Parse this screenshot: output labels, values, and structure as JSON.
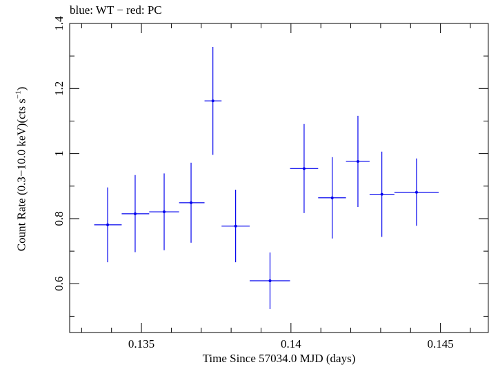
{
  "chart_data": {
    "type": "scatter",
    "title": "blue: WT − red: PC",
    "xlabel": "Time Since 57034.0 MJD (days)",
    "ylabel": "Count Rate (0.3−10.0 keV)(cts s",
    "ylabel_exponent": "−1",
    "ylabel_suffix": ")",
    "xlim": [
      0.1326,
      0.1466
    ],
    "ylim": [
      0.45,
      1.4
    ],
    "x_ticks": [
      {
        "value": 0.135,
        "label": "0.135"
      },
      {
        "value": 0.14,
        "label": "0.14"
      },
      {
        "value": 0.145,
        "label": "0.145"
      }
    ],
    "x_minor_step": 0.001,
    "y_ticks": [
      {
        "value": 0.6,
        "label": "0.6"
      },
      {
        "value": 0.8,
        "label": "0.8"
      },
      {
        "value": 1.0,
        "label": "1"
      },
      {
        "value": 1.2,
        "label": "1.2"
      },
      {
        "value": 1.4,
        "label": "1.4"
      }
    ],
    "y_minor_step": 0.1,
    "grid": false,
    "series": [
      {
        "color": "#0000ee",
        "points": [
          {
            "x": 0.13387,
            "y": 0.781,
            "xlo": 0.13342,
            "xhi": 0.13434,
            "ylo": 0.666,
            "yhi": 0.896
          },
          {
            "x": 0.13479,
            "y": 0.815,
            "xlo": 0.13434,
            "xhi": 0.13526,
            "ylo": 0.697,
            "yhi": 0.934
          },
          {
            "x": 0.13576,
            "y": 0.821,
            "xlo": 0.13526,
            "xhi": 0.13626,
            "ylo": 0.703,
            "yhi": 0.939
          },
          {
            "x": 0.13666,
            "y": 0.849,
            "xlo": 0.13626,
            "xhi": 0.13711,
            "ylo": 0.726,
            "yhi": 0.972
          },
          {
            "x": 0.13739,
            "y": 1.162,
            "xlo": 0.13711,
            "xhi": 0.13768,
            "ylo": 0.996,
            "yhi": 1.328
          },
          {
            "x": 0.13815,
            "y": 0.777,
            "xlo": 0.13768,
            "xhi": 0.13862,
            "ylo": 0.666,
            "yhi": 0.889
          },
          {
            "x": 0.1393,
            "y": 0.609,
            "xlo": 0.13862,
            "xhi": 0.13997,
            "ylo": 0.522,
            "yhi": 0.696
          },
          {
            "x": 0.14044,
            "y": 0.954,
            "xlo": 0.13997,
            "xhi": 0.14091,
            "ylo": 0.817,
            "yhi": 1.091
          },
          {
            "x": 0.14138,
            "y": 0.864,
            "xlo": 0.14091,
            "xhi": 0.14184,
            "ylo": 0.739,
            "yhi": 0.989
          },
          {
            "x": 0.14224,
            "y": 0.976,
            "xlo": 0.14184,
            "xhi": 0.14263,
            "ylo": 0.836,
            "yhi": 1.116
          },
          {
            "x": 0.14304,
            "y": 0.875,
            "xlo": 0.14263,
            "xhi": 0.14346,
            "ylo": 0.744,
            "yhi": 1.006
          },
          {
            "x": 0.1442,
            "y": 0.881,
            "xlo": 0.14346,
            "xhi": 0.14494,
            "ylo": 0.778,
            "yhi": 0.985
          }
        ]
      }
    ]
  }
}
